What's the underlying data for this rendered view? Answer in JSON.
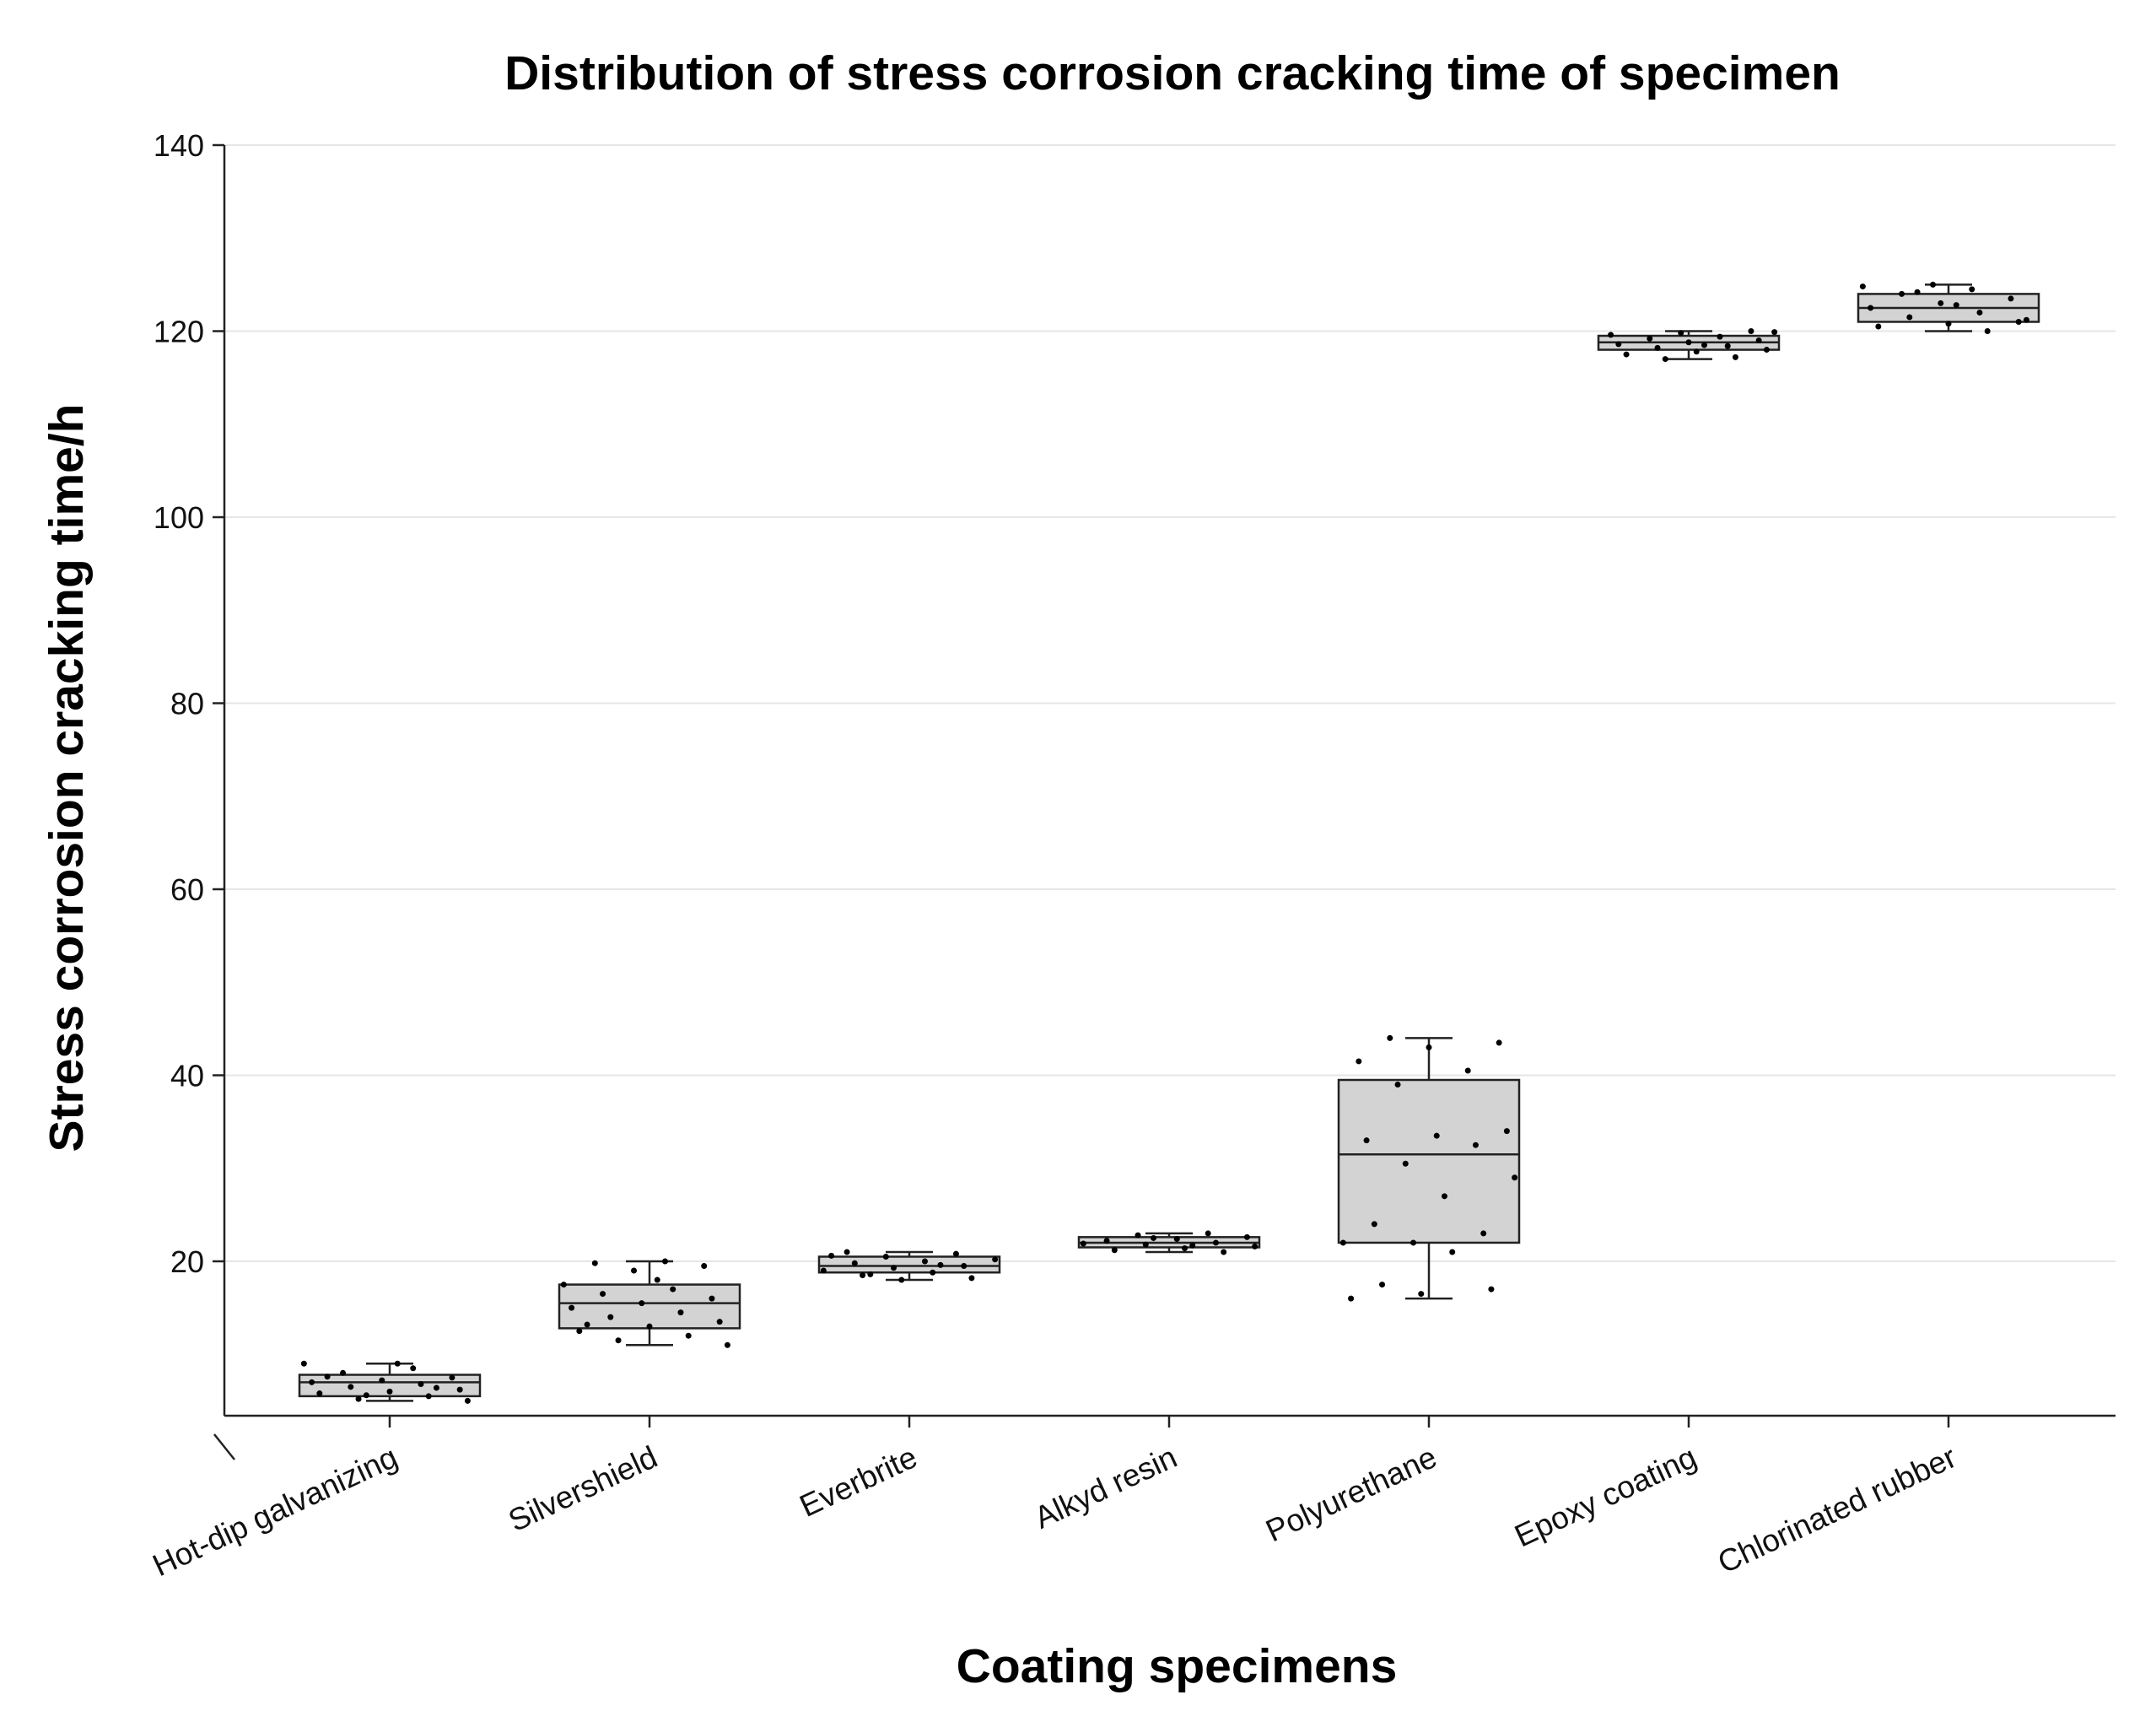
{
  "chart_data": {
    "type": "box",
    "title": "Distribution of stress corrosion cracking time of specimen",
    "xlabel": "Coating specimens",
    "ylabel": "Stress corrosion cracking time/h",
    "ylim": [
      3.5,
      140
    ],
    "yticks": [
      20,
      40,
      60,
      80,
      100,
      120,
      140
    ],
    "grid": true,
    "categories": [
      "Hot-dip galvanizing",
      "Silvershield",
      "Everbrite",
      "Alkyd resin",
      "Polyurethane",
      "Epoxy coating",
      "Chlorinated rubber"
    ],
    "boxes": [
      {
        "name": "Hot-dip galvanizing",
        "min": 5.0,
        "q1": 5.5,
        "median": 7.0,
        "q3": 7.8,
        "max": 9.0,
        "points": [
          9.0,
          8.5,
          8.0,
          7.5,
          7.2,
          7.0,
          6.8,
          6.5,
          6.2,
          6.0,
          5.8,
          5.5,
          5.2,
          5.0,
          9.0,
          7.6,
          6.4,
          5.6
        ]
      },
      {
        "name": "Silvershield",
        "min": 11.0,
        "q1": 12.8,
        "median": 15.5,
        "q3": 17.5,
        "max": 20.0,
        "points": [
          20.0,
          19.8,
          19.5,
          19.0,
          17.5,
          17.0,
          16.5,
          16.0,
          15.5,
          15.0,
          14.5,
          14.0,
          13.5,
          13.0,
          12.5,
          12.0,
          11.5,
          11.0,
          18.0,
          13.2
        ]
      },
      {
        "name": "Everbrite",
        "min": 18.0,
        "q1": 18.8,
        "median": 19.5,
        "q3": 20.5,
        "max": 21.0,
        "points": [
          21.0,
          20.8,
          20.5,
          20.2,
          20.0,
          19.8,
          19.5,
          19.3,
          19.0,
          18.8,
          18.5,
          18.2,
          18.0,
          20.6,
          19.6,
          18.6
        ]
      },
      {
        "name": "Alkyd resin",
        "min": 21.0,
        "q1": 21.5,
        "median": 22.0,
        "q3": 22.6,
        "max": 23.0,
        "points": [
          23.0,
          22.8,
          22.6,
          22.4,
          22.2,
          22.0,
          21.8,
          21.6,
          21.4,
          21.2,
          21.0,
          22.5,
          21.9,
          21.7
        ]
      },
      {
        "name": "Polyurethane",
        "min": 16.0,
        "q1": 22.0,
        "median": 31.5,
        "q3": 39.5,
        "max": 44.0,
        "points": [
          44.0,
          43.5,
          43.0,
          41.5,
          40.5,
          39.0,
          34.0,
          33.5,
          33.0,
          32.5,
          30.5,
          29.0,
          27.0,
          24.0,
          23.0,
          22.0,
          22.0,
          21.0,
          17.5,
          17.0,
          16.5,
          16.0
        ]
      },
      {
        "name": "Epoxy coating",
        "min": 117.0,
        "q1": 118.0,
        "median": 118.8,
        "q3": 119.5,
        "max": 120.0,
        "points": [
          120.0,
          119.8,
          119.6,
          119.4,
          119.2,
          119.0,
          118.8,
          118.6,
          118.4,
          118.2,
          118.0,
          117.8,
          117.5,
          117.2,
          117.0,
          119.9,
          118.5
        ]
      },
      {
        "name": "Chlorinated rubber",
        "min": 120.0,
        "q1": 121.0,
        "median": 122.5,
        "q3": 124.0,
        "max": 125.0,
        "points": [
          125.0,
          124.8,
          124.5,
          124.0,
          123.5,
          123.0,
          122.5,
          122.0,
          121.5,
          121.0,
          120.8,
          120.5,
          120.0,
          124.2,
          121.2,
          122.8
        ]
      }
    ]
  }
}
